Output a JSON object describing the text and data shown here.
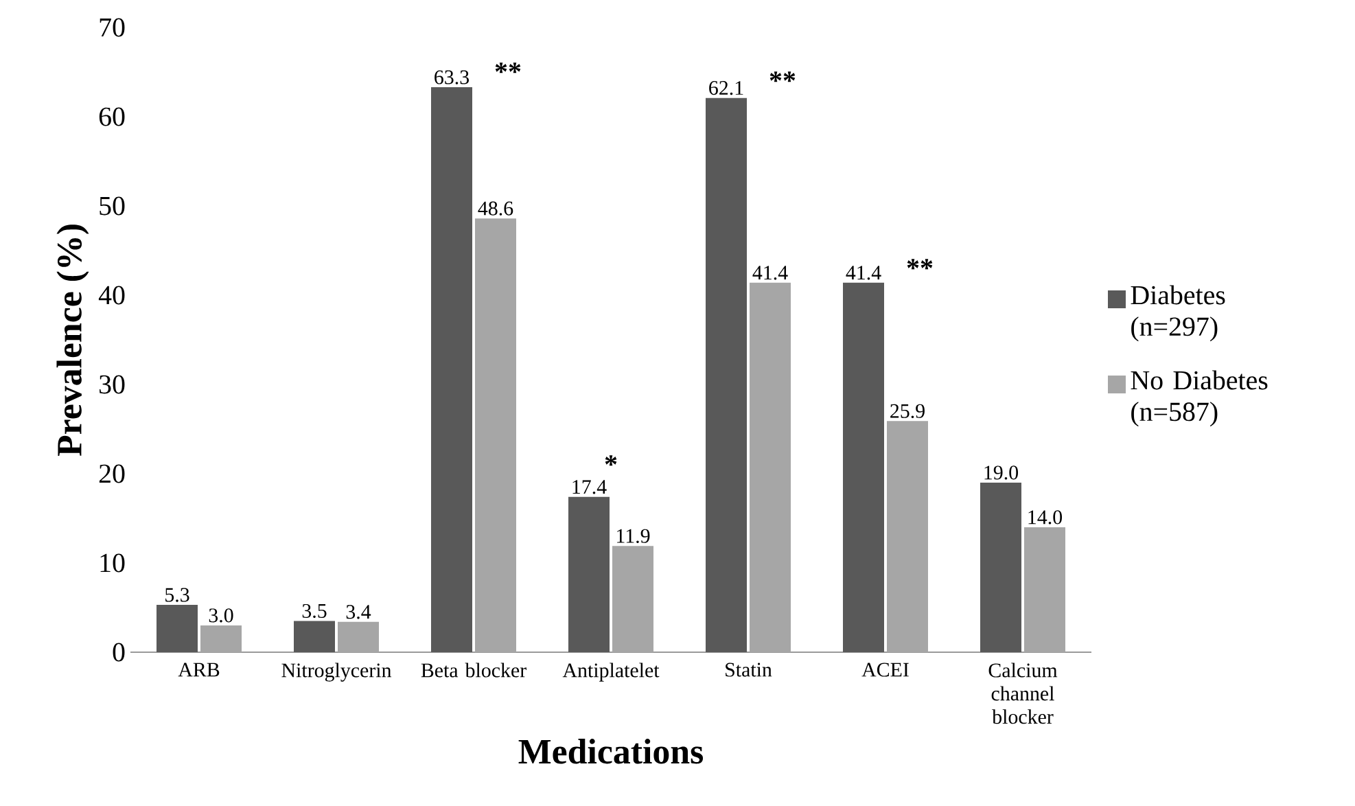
{
  "chart_data": {
    "type": "bar",
    "xlabel": "Medications",
    "ylabel": "Prevalence (%)",
    "categories": [
      "ARB",
      "Nitroglycerin",
      "Beta blocker",
      "Antiplatelet",
      "Statin",
      "ACEI",
      "Calcium channel blocker"
    ],
    "series": [
      {
        "name": "Diabetes (n=297)",
        "color": "#595959",
        "values": [
          5.3,
          3.5,
          63.3,
          17.4,
          62.1,
          41.4,
          19.0
        ],
        "value_labels": [
          "5.3",
          "3.5",
          "63.3",
          "17.4",
          "62.1",
          "41.4",
          "19.0"
        ]
      },
      {
        "name": "No Diabetes (n=587)",
        "color": "#a6a6a6",
        "values": [
          3.0,
          3.4,
          48.6,
          11.9,
          41.4,
          25.9,
          14.0
        ],
        "value_labels": [
          "3.0",
          "3.4",
          "48.6",
          "11.9",
          "41.4",
          "25.9",
          "14.0"
        ]
      }
    ],
    "ylim": [
      0,
      70
    ],
    "yticks": [
      0,
      10,
      20,
      30,
      40,
      50,
      60,
      70
    ],
    "legend": "right",
    "annotations": [
      "**",
      "*",
      "**",
      "**"
    ]
  }
}
